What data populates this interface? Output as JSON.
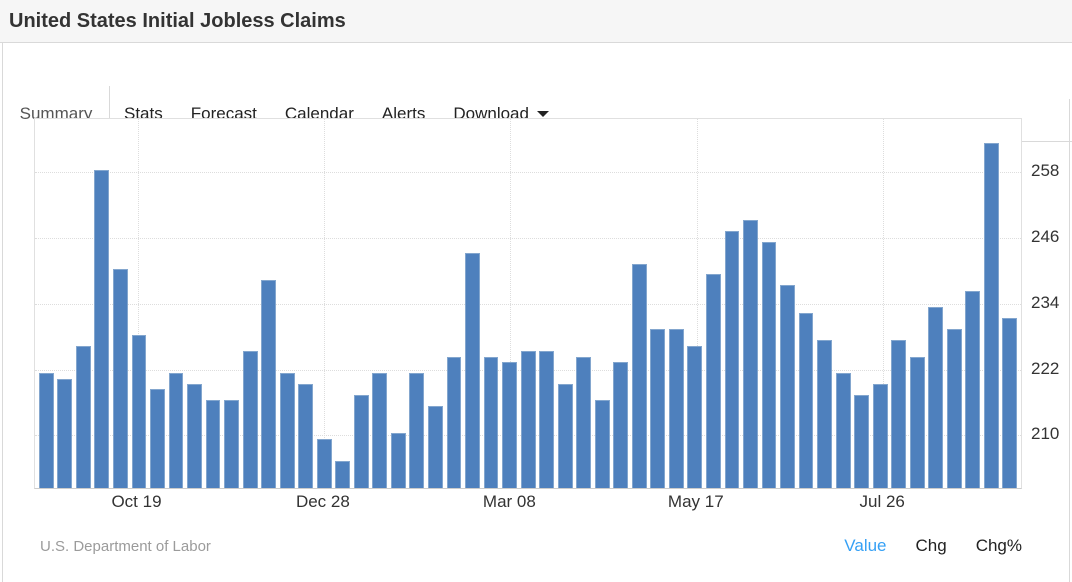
{
  "header": {
    "title": "United States Initial Jobless Claims"
  },
  "tabs": {
    "items": [
      {
        "label": "Summary",
        "active": true
      },
      {
        "label": "Stats"
      },
      {
        "label": "Forecast"
      },
      {
        "label": "Calendar"
      },
      {
        "label": "Alerts"
      },
      {
        "label": "Download",
        "dropdown": true
      }
    ]
  },
  "chart_data": {
    "type": "bar",
    "title": "United States Initial Jobless Claims",
    "values": [
      221,
      220,
      226,
      258,
      240,
      228,
      218,
      221,
      219,
      216,
      216,
      225,
      238,
      221,
      219,
      209,
      205,
      217,
      221,
      210,
      221,
      215,
      224,
      243,
      224,
      223,
      225,
      225,
      219,
      224,
      216,
      223,
      241,
      229,
      229,
      226,
      239,
      247,
      249,
      245,
      237,
      232,
      227,
      221,
      217,
      219,
      227,
      224,
      233,
      229,
      236,
      263,
      231
    ],
    "x_ticks": [
      {
        "index": 5,
        "label": "Oct 19"
      },
      {
        "index": 15,
        "label": "Dec 28"
      },
      {
        "index": 25,
        "label": "Mar 08"
      },
      {
        "index": 35,
        "label": "May 17"
      },
      {
        "index": 45,
        "label": "Jul 26"
      }
    ],
    "y_ticks": [
      258,
      246,
      234,
      222,
      210
    ],
    "ylim": [
      200,
      267.75
    ],
    "grid": true,
    "legend_position": "none",
    "yaxis_side": "right",
    "bar_color": "#4e80bd",
    "bar_edge_color": "#83a6ce",
    "grid_color": "#dddddd",
    "axis_label_color": "#333333"
  },
  "footer": {
    "source": "U.S. Department of Labor",
    "links": [
      {
        "label": "Value",
        "active": true
      },
      {
        "label": "Chg"
      },
      {
        "label": "Chg%"
      }
    ],
    "active_link_color": "#35a0f5"
  }
}
